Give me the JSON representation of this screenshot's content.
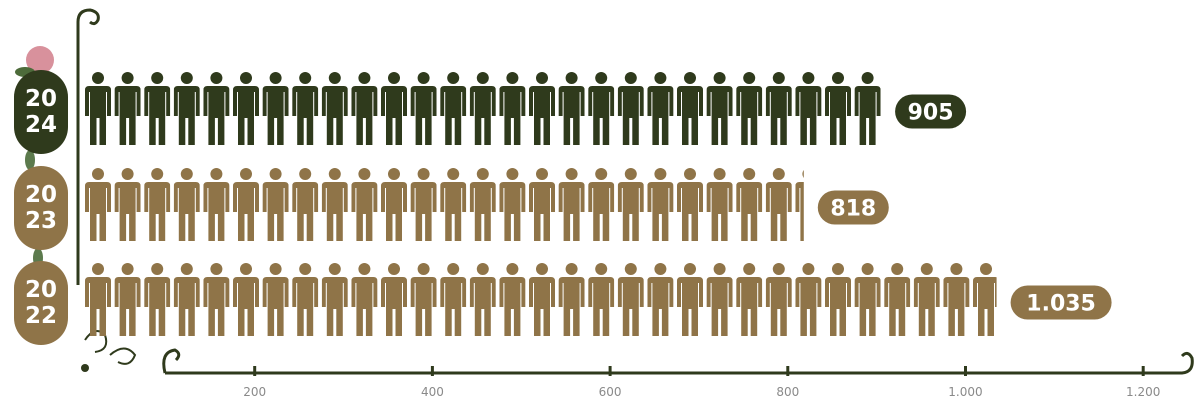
{
  "chart_data": {
    "type": "pictogram-bar",
    "categories": [
      "2024",
      "2023",
      "2022"
    ],
    "values": [
      905,
      818,
      1035
    ],
    "value_labels": [
      "905",
      "818",
      "1.035"
    ],
    "colors": [
      "#2f3a1c",
      "#8f7448",
      "#8f7448"
    ],
    "xlim": [
      0,
      1260
    ],
    "xticks": [
      200,
      400,
      600,
      800,
      {
        "value": 1000,
        "label": "1.000"
      },
      {
        "value": 1200,
        "label": "1.200"
      }
    ]
  }
}
